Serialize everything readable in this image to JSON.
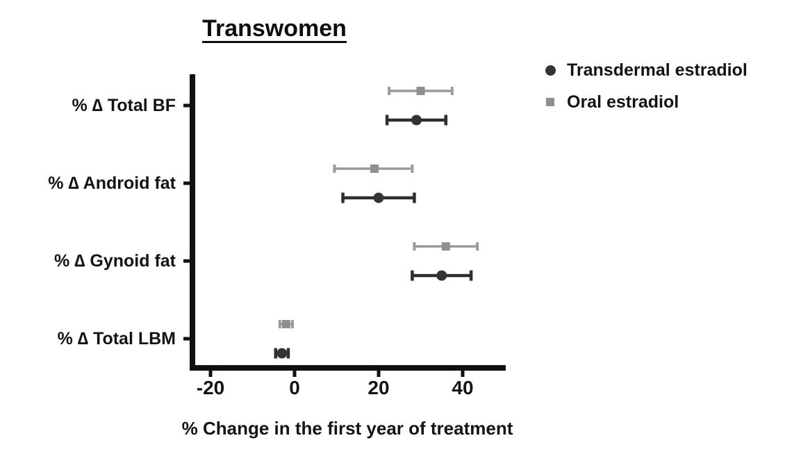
{
  "chart_data": {
    "type": "scatter",
    "subtype": "horizontal-dot-plot-with-error-bars",
    "title": "Transwomen",
    "xlabel": "% Change in the first year of treatment",
    "orientation": "horizontal",
    "categories": [
      "% ∆ Total BF",
      "% ∆ Android fat",
      "% ∆ Gynoid fat",
      "% ∆ Total LBM"
    ],
    "x_ticks": [
      "-20",
      "0",
      "20",
      "40"
    ],
    "x_tick_values": [
      -20,
      0,
      20,
      40
    ],
    "xlim": [
      -25,
      50
    ],
    "grid": "off",
    "legend_position": "top-right",
    "axis_color": "#111111",
    "series": [
      {
        "name": "Transdermal estradiol",
        "marker": "circle",
        "color": "#333333",
        "line_color": "#2e2e2e",
        "points": [
          {
            "category": "% ∆ Total BF",
            "value": 29,
            "lo": 22,
            "hi": 36
          },
          {
            "category": "% ∆ Android fat",
            "value": 20,
            "lo": 11.5,
            "hi": 28.5
          },
          {
            "category": "% ∆ Gynoid fat",
            "value": 35,
            "lo": 28,
            "hi": 42
          },
          {
            "category": "% ∆ Total LBM",
            "value": -3,
            "lo": -4.5,
            "hi": -1.5
          }
        ]
      },
      {
        "name": "Oral estradiol",
        "marker": "square",
        "color": "#8f8f8f",
        "line_color": "#9b9b9b",
        "points": [
          {
            "category": "% ∆ Total BF",
            "value": 30,
            "lo": 22.5,
            "hi": 37.5
          },
          {
            "category": "% ∆ Android fat",
            "value": 19,
            "lo": 9.5,
            "hi": 28
          },
          {
            "category": "% ∆ Gynoid fat",
            "value": 36,
            "lo": 28.5,
            "hi": 43.5
          },
          {
            "category": "% ∆ Total LBM",
            "value": -2,
            "lo": -3.5,
            "hi": -0.5
          }
        ]
      }
    ]
  }
}
